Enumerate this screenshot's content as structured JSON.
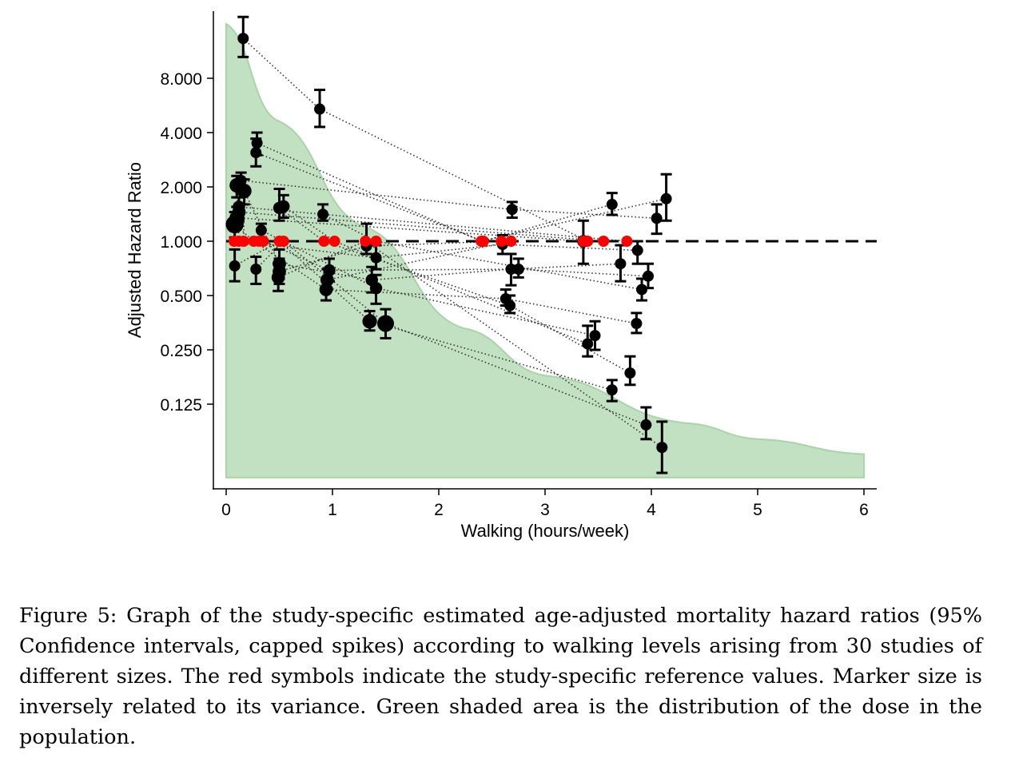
{
  "chart_data": {
    "type": "scatter",
    "xlabel": "Walking (hours/week)",
    "ylabel": "Adjusted Hazard Ratio",
    "xlim": [
      0,
      6
    ],
    "xticks": [
      0,
      1,
      2,
      3,
      4,
      5,
      6
    ],
    "yscale": "log2",
    "yticks": [
      0.125,
      0.25,
      0.5,
      1,
      2,
      4,
      8
    ],
    "ytick_labels": [
      "0.125",
      "0.250",
      "0.500",
      "1.000",
      "2.000",
      "4.000",
      "8.000"
    ],
    "reference_line": 1,
    "grid": false,
    "colors": {
      "points": "#000000",
      "reference": "#ff0000",
      "density": "#c2e0c2",
      "density_edge": "#a8d4a8"
    },
    "density_curve": {
      "baseline_hr": 0.049,
      "x": [
        0,
        0.47,
        1.29,
        2.23,
        3,
        4.34,
        5,
        6
      ],
      "hr": [
        16,
        4.7,
        1.21,
        0.33,
        0.18,
        0.098,
        0.08,
        0.066
      ]
    },
    "studies": [
      {
        "ref": 3.4,
        "points": [
          [
            0.16,
            13.3,
            10.5,
            17.5,
            1
          ],
          [
            0.88,
            5.4,
            4.3,
            6.9,
            1
          ]
        ]
      },
      {
        "ref": 2.4,
        "points": [
          [
            0.29,
            3.5,
            3.0,
            4.0,
            1
          ],
          [
            4.14,
            1.72,
            1.3,
            2.35,
            1
          ]
        ]
      },
      {
        "ref": 2.42,
        "points": [
          [
            0.28,
            3.1,
            2.6,
            3.7,
            1
          ],
          [
            3.63,
            1.6,
            1.4,
            1.85,
            1
          ]
        ]
      },
      {
        "ref": 0.075,
        "points": [
          [
            0.14,
            2.17,
            1.85,
            2.4,
            1
          ],
          [
            2.69,
            1.5,
            1.35,
            1.65,
            1
          ],
          [
            4.05,
            1.34,
            1.1,
            1.6,
            1
          ]
        ]
      },
      {
        "ref": 0.12,
        "points": [
          [
            0.1,
            2.04,
            1.75,
            2.3,
            1.3
          ],
          [
            1.41,
            0.81,
            0.7,
            0.95,
            1
          ],
          [
            2.6,
            0.96,
            0.85,
            1.08,
            1
          ],
          [
            3.87,
            0.89,
            0.75,
            1.0,
            1
          ]
        ]
      },
      {
        "ref": 0.165,
        "points": [
          [
            0.17,
            1.9,
            1.6,
            2.2,
            1.3
          ],
          [
            0.5,
            0.75,
            0.62,
            0.9,
            1.2
          ],
          [
            1.37,
            0.61,
            0.52,
            0.72,
            1.1
          ],
          [
            2.68,
            0.7,
            0.57,
            0.85,
            1
          ],
          [
            3.71,
            0.75,
            0.6,
            0.95,
            1
          ]
        ]
      },
      {
        "ref": 0.26,
        "points": [
          [
            0.08,
            1.24,
            1.05,
            1.45,
            1.6
          ],
          [
            0.94,
            0.54,
            0.47,
            0.62,
            1.2
          ],
          [
            2.63,
            0.48,
            0.44,
            0.54,
            1
          ],
          [
            3.86,
            0.35,
            0.31,
            0.4,
            1
          ]
        ]
      },
      {
        "ref": 0.31,
        "points": [
          [
            0.33,
            1.15,
            1.05,
            1.25,
            1
          ],
          [
            1.41,
            0.55,
            0.45,
            0.65,
            1.1
          ],
          [
            3.47,
            0.3,
            0.25,
            0.36,
            1
          ]
        ]
      },
      {
        "ref": 0.35,
        "points": [
          [
            0.97,
            0.69,
            0.6,
            0.8,
            1.1
          ],
          [
            2.75,
            0.7,
            0.63,
            0.8,
            1
          ],
          [
            3.97,
            0.64,
            0.55,
            0.75,
            1
          ]
        ]
      },
      {
        "ref": 0.5,
        "points": [
          [
            0.08,
            0.73,
            0.6,
            0.9,
            1
          ],
          [
            1.35,
            0.36,
            0.32,
            0.41,
            1.3
          ],
          [
            3.63,
            0.15,
            0.13,
            0.17,
            1
          ]
        ]
      },
      {
        "ref": 0.54,
        "points": [
          [
            0.28,
            0.7,
            0.58,
            0.82,
            1
          ],
          [
            1.5,
            0.35,
            0.29,
            0.42,
            1.5
          ],
          [
            3.95,
            0.096,
            0.08,
            0.12,
            1
          ]
        ]
      },
      {
        "ref": 0.92,
        "points": [
          [
            0.5,
            1.53,
            1.3,
            1.95,
            1.1
          ],
          [
            2.67,
            0.44,
            0.4,
            0.5,
            1
          ],
          [
            3.8,
            0.186,
            0.16,
            0.23,
            1
          ]
        ]
      },
      {
        "ref": 1.02,
        "points": [
          [
            0.54,
            1.56,
            1.35,
            1.8,
            1.1
          ],
          [
            3.4,
            0.27,
            0.23,
            0.34,
            1
          ]
        ]
      },
      {
        "ref": 1.31,
        "points": [
          [
            0.49,
            0.63,
            0.53,
            0.75,
            1.2
          ],
          [
            4.1,
            0.072,
            0.052,
            0.1,
            1
          ]
        ]
      },
      {
        "ref": 1.41,
        "points": [
          [
            0.91,
            1.41,
            1.3,
            1.6,
            1
          ],
          [
            3.91,
            0.54,
            0.47,
            0.62,
            1
          ]
        ]
      },
      {
        "ref": 2.59,
        "points": [
          [
            0.5,
            0.68,
            0.58,
            0.8,
            1.2
          ],
          [
            1.32,
            0.94,
            0.85,
            1.25,
            1
          ]
        ]
      },
      {
        "ref": 2.68,
        "points": [
          [
            0.95,
            0.61,
            0.55,
            0.7,
            1.2
          ]
        ]
      },
      {
        "ref": 3.36,
        "points": [
          [
            0.1,
            1.35,
            1.2,
            1.55,
            1.3
          ],
          [
            3.36,
            1.0,
            0.75,
            1.3,
            1.1
          ]
        ]
      },
      {
        "ref": 3.55,
        "points": [
          [
            0.12,
            1.45,
            1.3,
            1.6,
            1.2
          ]
        ]
      },
      {
        "ref": 3.77,
        "points": [
          [
            0.12,
            1.55,
            1.35,
            1.75,
            1.1
          ]
        ]
      }
    ]
  },
  "caption": "Figure 5: Graph of the study-specific estimated age-adjusted mortality hazard ratios (95% Confidence intervals, capped spikes) according to walking levels arising from 30 studies of different sizes. The red symbols indicate the study-specific reference values. Marker size is inversely related to its variance. Green shaded area is the distribution of the dose in the population."
}
